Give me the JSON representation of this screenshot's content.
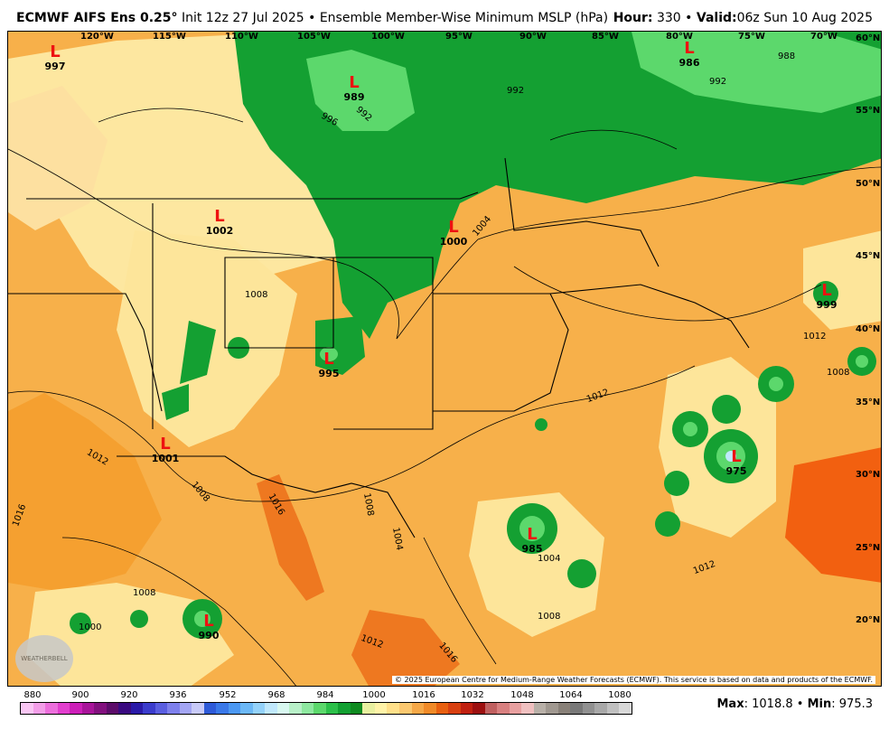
{
  "header": {
    "model": "ECMWF AIFS Ens 0.25",
    "degree": "°",
    "init": "Init 12z 27 Jul 2025",
    "bullet": "•",
    "product": "Ensemble Member-Wise Minimum MSLP (hPa)",
    "hour_label": "Hour:",
    "hour_value": "330",
    "valid_label": "Valid:",
    "valid_value": "06z Sun 10 Aug 2025"
  },
  "map": {
    "lon_labels": [
      "120°W",
      "115°W",
      "110°W",
      "105°W",
      "100°W",
      "95°W",
      "90°W",
      "85°W",
      "80°W",
      "75°W",
      "70°W"
    ],
    "lat_labels": [
      "60°N",
      "55°N",
      "50°N",
      "45°N",
      "40°N",
      "35°N",
      "30°N",
      "25°N",
      "20°N"
    ],
    "lows": [
      {
        "letter": "L",
        "value": "997"
      },
      {
        "letter": "L",
        "value": "989"
      },
      {
        "letter": "L",
        "value": "986"
      },
      {
        "letter": "L",
        "value": "1002"
      },
      {
        "letter": "L",
        "value": "1000"
      },
      {
        "letter": "L",
        "value": "995"
      },
      {
        "letter": "L",
        "value": "1001"
      },
      {
        "letter": "L",
        "value": "985"
      },
      {
        "letter": "L",
        "value": "975"
      },
      {
        "letter": "L",
        "value": "990"
      },
      {
        "letter": "L",
        "value": "999"
      }
    ],
    "contour_labels": [
      "992",
      "996",
      "992",
      "988",
      "992",
      "1004",
      "1008",
      "1012",
      "1016",
      "1008",
      "1004",
      "1008",
      "1012",
      "1004",
      "1008",
      "1012",
      "1016",
      "1008",
      "1012",
      "1016",
      "1012",
      "1000",
      "1008"
    ],
    "credit": "© 2025 European Centre for Medium-Range Weather Forecasts (ECMWF). This service is based on data and products of the ECMWF.",
    "logo_text": "WEATHERBELL"
  },
  "colorbar": {
    "ticks": [
      "880",
      "900",
      "920",
      "936",
      "952",
      "968",
      "984",
      "1000",
      "1016",
      "1032",
      "1048",
      "1064",
      "1080"
    ],
    "colors": [
      "#f9c6f3",
      "#f39ee8",
      "#ec6fdc",
      "#e23fce",
      "#cc1fb8",
      "#a8149a",
      "#82107e",
      "#5c0c6a",
      "#3a0a80",
      "#2a1aa8",
      "#3b3ccc",
      "#5a5ee0",
      "#7e80ec",
      "#a4a6f4",
      "#c8caf8",
      "#2e5ad8",
      "#3a78e8",
      "#4c98f2",
      "#6cb8f6",
      "#94d2fa",
      "#c0e8fc",
      "#d8f8f0",
      "#b8f0c8",
      "#8ee8a0",
      "#5cd86c",
      "#2cc04a",
      "#12a032",
      "#0e8a20",
      "#e8f0a0",
      "#fff3a8",
      "#ffe08a",
      "#fbc870",
      "#f5a848",
      "#f08a28",
      "#e86010",
      "#d84010",
      "#c02010",
      "#9c1010",
      "#c06060",
      "#d88080",
      "#e8a0a0",
      "#f0c0c0",
      "#b8b0a8",
      "#a09890",
      "#888078",
      "#787878",
      "#909090",
      "#a8a8a8",
      "#c0c0c0",
      "#d8d8d8"
    ]
  },
  "stats": {
    "max_label": "Max",
    "max_value": "1018.8",
    "min_label": "Min",
    "min_value": "975.3",
    "sep": "•",
    "colon": ":"
  }
}
